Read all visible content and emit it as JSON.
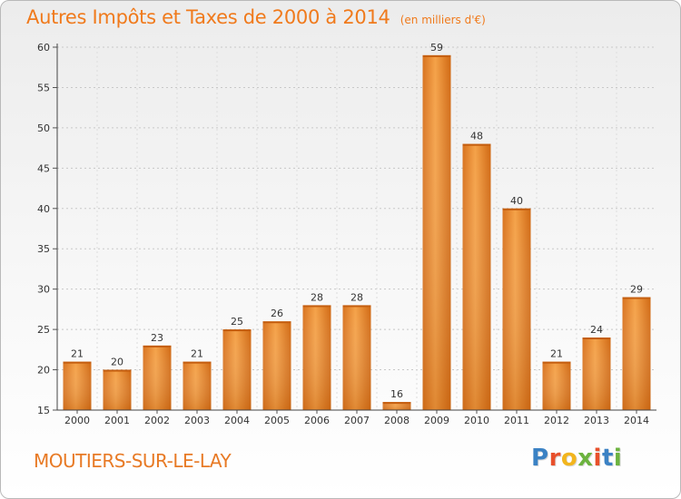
{
  "header": {
    "title": "Autres Impôts et Taxes de 2000 à 2014",
    "unit": "(en milliers d'€)"
  },
  "location": "MOUTIERS-SUR-LE-LAY",
  "brand": {
    "letters": [
      {
        "char": "P",
        "color": "#3b82c4"
      },
      {
        "char": "r",
        "color": "#e8502b"
      },
      {
        "char": "o",
        "color": "#f2b51d"
      },
      {
        "char": "x",
        "color": "#6cb33f"
      },
      {
        "char": "i",
        "color": "#e8502b"
      },
      {
        "char": "t",
        "color": "#3b82c4"
      },
      {
        "char": "i",
        "color": "#6cb33f"
      }
    ]
  },
  "chart_data": {
    "type": "bar",
    "title": "Autres Impôts et Taxes de 2000 à 2014",
    "subtitle": "(en milliers d'€)",
    "xlabel": "",
    "ylabel": "",
    "categories": [
      "2000",
      "2001",
      "2002",
      "2003",
      "2004",
      "2005",
      "2006",
      "2007",
      "2008",
      "2009",
      "2010",
      "2011",
      "2012",
      "2013",
      "2014"
    ],
    "values": [
      21,
      20,
      23,
      21,
      25,
      26,
      28,
      28,
      16,
      59,
      48,
      40,
      21,
      24,
      29
    ],
    "ylim": [
      15,
      60
    ],
    "yticks": [
      15,
      20,
      25,
      30,
      35,
      40,
      45,
      50,
      55,
      60
    ],
    "grid": "horizontal dotted",
    "bar_color": "#f09a3e",
    "bar_color_dark": "#d66a14"
  }
}
